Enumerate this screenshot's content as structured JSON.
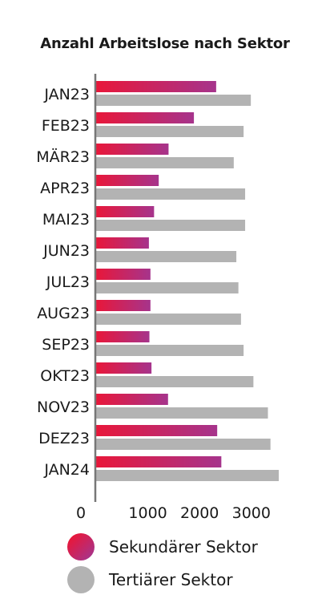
{
  "chart_data": {
    "type": "bar",
    "orientation": "horizontal",
    "title": "Anzahl Arbeitslose nach Sektor",
    "xlabel": "",
    "ylabel": "",
    "categories": [
      "JAN23",
      "FEB23",
      "MÄR23",
      "APR23",
      "MAI23",
      "JUN23",
      "JUL23",
      "AUG23",
      "SEP23",
      "OKT23",
      "NOV23",
      "DEZ23",
      "JAN24"
    ],
    "series": [
      {
        "name": "Sekundärer Sektor",
        "values": [
          2320,
          1890,
          1400,
          1210,
          1120,
          1020,
          1050,
          1050,
          1030,
          1070,
          1390,
          2340,
          2420
        ],
        "color_from": "#e8173a",
        "color_to": "#a6348c"
      },
      {
        "name": "Tertiärer Sektor",
        "values": [
          2990,
          2850,
          2660,
          2880,
          2880,
          2710,
          2750,
          2800,
          2850,
          3040,
          3320,
          3370,
          3530
        ],
        "color": "#b3b3b3"
      }
    ],
    "xlim": [
      0,
      3600
    ],
    "xticks": [
      0,
      1000,
      2000,
      3000
    ],
    "xtick_labels": [
      "0",
      "1000",
      "2000",
      "3000"
    ],
    "grid": false,
    "legend_position": "bottom"
  }
}
